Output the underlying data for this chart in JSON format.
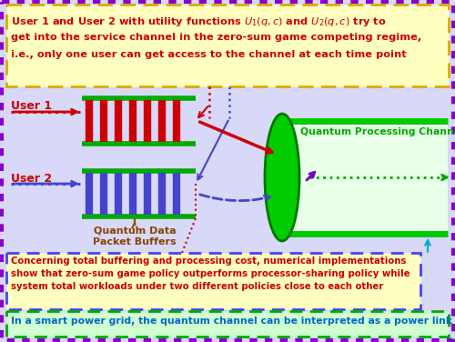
{
  "bg_color": "#d8d8f8",
  "outer_border_color": "#8800cc",
  "outer_bg": "#d8d8f8",
  "top_box_bg": "#ffffc0",
  "top_box_border": "#ddaa00",
  "top_text_color": "#cc0000",
  "bottom_box1_bg": "#ffffc0",
  "bottom_box1_border": "#4444ff",
  "bottom_box1_text_line1": "Concerning total buffering and processing cost, numerical implementations",
  "bottom_box1_text_line2": "show that zero-sum game policy outperforms processor-sharing policy while",
  "bottom_box1_text_line3": "system total workloads under two different policies close to each other",
  "bottom_box1_text_color": "#cc0000",
  "bottom_box2_bg": "#d0ffd0",
  "bottom_box2_border": "#00aa00",
  "bottom_box2_text": "In a smart power grid, the quantum channel can be interpreted as a power link",
  "bottom_box2_text_color": "#0066cc",
  "user1_label": "User 1",
  "user2_label": "User 2",
  "user_label_color": "#cc0000",
  "buffer_label_line1": "Quantum Data",
  "buffer_label_line2": "Packet Buffers",
  "buffer_label_color": "#884400",
  "channel_label": "Quantum Processing Channel",
  "channel_label_color": "#00aa00",
  "buf1_bar_color": "#cc0000",
  "buf2_bar_color": "#4444cc",
  "buf_border_color": "#00aa00",
  "channel_fill_color": "#00cc00",
  "channel_border_color": "#007700",
  "arrow_red": "#cc0000",
  "arrow_blue": "#4444cc",
  "arrow_green": "#00aa00",
  "arrow_purple": "#7700cc",
  "arrow_cyan": "#00aacc",
  "dotted_red": "#cc0000",
  "dotted_blue": "#4444cc",
  "dotted_brown": "#885500"
}
